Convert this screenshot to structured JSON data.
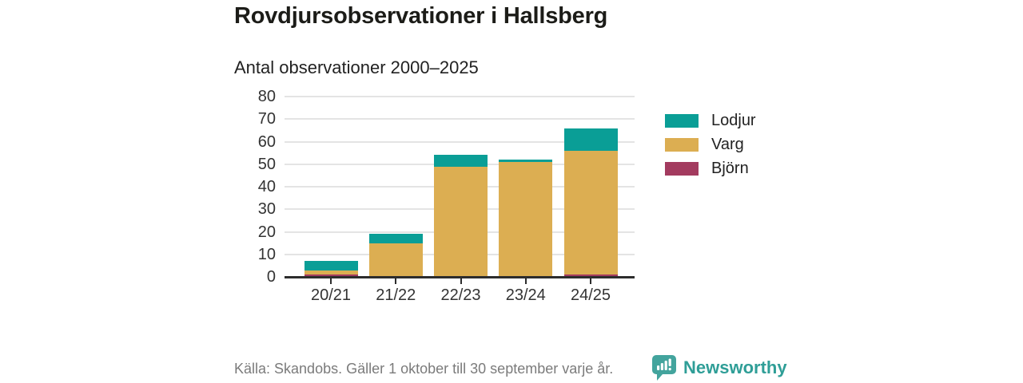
{
  "header": {
    "title": "Rovdjursobservationer i Hallsberg",
    "subtitle": "Antal observationer 2000–2025"
  },
  "footer": {
    "source": "Källa: Skandobs. Gäller 1 oktober till 30 september varje år.",
    "brand": "Newsworthy"
  },
  "colors": {
    "lodjur": "#0a9e96",
    "varg": "#dcae52",
    "bjorn": "#a33b5f",
    "axis": "#2d2d2d",
    "grid": "#e4e4e4",
    "brand_icon_teal": "#43a49d",
    "brand_text_teal": "#2f9e97",
    "text_dark": "#222222",
    "text_gray": "#7b7b7b"
  },
  "chart_data": {
    "type": "bar",
    "stacked": true,
    "title": "Rovdjursobservationer i Hallsberg",
    "subtitle": "Antal observationer 2000–2025",
    "categories": [
      "20/21",
      "21/22",
      "22/23",
      "23/24",
      "24/25"
    ],
    "series": [
      {
        "name": "Lodjur",
        "color": "#0a9e96",
        "values": [
          4,
          4,
          5,
          1,
          10
        ]
      },
      {
        "name": "Varg",
        "color": "#dcae52",
        "values": [
          2,
          15,
          49,
          51,
          55
        ]
      },
      {
        "name": "Björn",
        "color": "#a33b5f",
        "values": [
          1,
          0,
          0,
          0,
          1
        ]
      }
    ],
    "stack_order_bottom_to_top": [
      "Björn",
      "Varg",
      "Lodjur"
    ],
    "totals": [
      7,
      19,
      54,
      52,
      66
    ],
    "xlabel": "",
    "ylabel": "",
    "ylim": [
      0,
      80
    ],
    "yticks": [
      0,
      10,
      20,
      30,
      40,
      50,
      60,
      70,
      80
    ],
    "grid": "horizontal",
    "legend_position": "right"
  }
}
